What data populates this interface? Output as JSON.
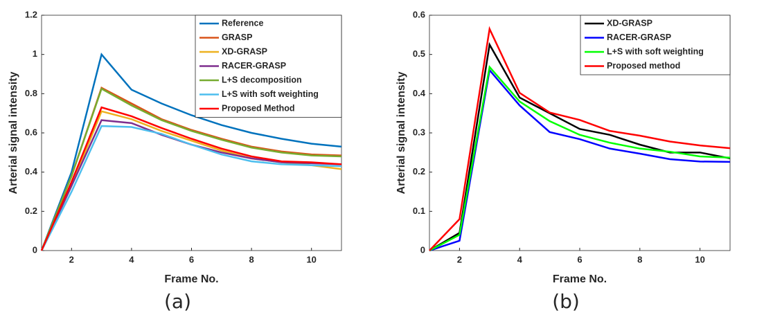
{
  "chart_data": [
    {
      "type": "line",
      "caption": "(a)",
      "xlabel": "Frame No.",
      "ylabel": "Arterial signal intensity",
      "x": [
        1,
        2,
        3,
        4,
        5,
        6,
        7,
        8,
        9,
        10,
        11
      ],
      "xlim": [
        1,
        11
      ],
      "xticks": [
        2,
        4,
        6,
        8,
        10
      ],
      "ylim": [
        0,
        1.2
      ],
      "yticks": [
        0,
        0.2,
        0.4,
        0.6,
        0.8,
        1,
        1.2
      ],
      "legend": "top-right",
      "series": [
        {
          "name": "Reference",
          "color": "#0072BD",
          "values": [
            0,
            0.4,
            1.0,
            0.82,
            0.75,
            0.69,
            0.64,
            0.6,
            0.57,
            0.545,
            0.53
          ]
        },
        {
          "name": "GRASP",
          "color": "#D95319",
          "values": [
            0,
            0.38,
            0.83,
            0.75,
            0.67,
            0.615,
            0.57,
            0.53,
            0.505,
            0.49,
            0.485
          ]
        },
        {
          "name": "XD-GRASP",
          "color": "#EDB120",
          "values": [
            0,
            0.33,
            0.71,
            0.67,
            0.61,
            0.56,
            0.51,
            0.47,
            0.45,
            0.435,
            0.415
          ]
        },
        {
          "name": "RACER-GRASP",
          "color": "#7E2F8E",
          "values": [
            0,
            0.33,
            0.665,
            0.65,
            0.59,
            0.54,
            0.5,
            0.47,
            0.45,
            0.445,
            0.44
          ]
        },
        {
          "name": "L+S decomposition",
          "color": "#77AC30",
          "values": [
            0,
            0.38,
            0.825,
            0.74,
            0.665,
            0.61,
            0.565,
            0.525,
            0.5,
            0.485,
            0.48
          ]
        },
        {
          "name": "L+S with soft weighting",
          "color": "#4DBEEE",
          "values": [
            0,
            0.3,
            0.635,
            0.63,
            0.595,
            0.54,
            0.49,
            0.455,
            0.44,
            0.435,
            0.43
          ]
        },
        {
          "name": "Proposed Method",
          "color": "#FF0000",
          "values": [
            0,
            0.35,
            0.73,
            0.685,
            0.625,
            0.57,
            0.52,
            0.48,
            0.455,
            0.45,
            0.44
          ]
        }
      ]
    },
    {
      "type": "line",
      "caption": "(b)",
      "xlabel": "Frame No.",
      "ylabel": "Arterial signal intensity",
      "x": [
        1,
        2,
        3,
        4,
        5,
        6,
        7,
        8,
        9,
        10,
        11
      ],
      "xlim": [
        1,
        11
      ],
      "xticks": [
        2,
        4,
        6,
        8,
        10
      ],
      "ylim": [
        0,
        0.6
      ],
      "yticks": [
        0,
        0.1,
        0.2,
        0.3,
        0.4,
        0.5,
        0.6
      ],
      "legend": "top-right",
      "series": [
        {
          "name": "XD-GRASP",
          "color": "#000000",
          "values": [
            0,
            0.045,
            0.525,
            0.39,
            0.35,
            0.31,
            0.295,
            0.27,
            0.25,
            0.25,
            0.235
          ]
        },
        {
          "name": "RACER-GRASP",
          "color": "#0000FF",
          "values": [
            0,
            0.025,
            0.46,
            0.37,
            0.302,
            0.284,
            0.26,
            0.247,
            0.233,
            0.227,
            0.226
          ]
        },
        {
          "name": "L+S with soft weighting",
          "color": "#00FF00",
          "values": [
            0,
            0.04,
            0.468,
            0.38,
            0.33,
            0.295,
            0.275,
            0.26,
            0.252,
            0.24,
            0.237
          ]
        },
        {
          "name": "Proposed method",
          "color": "#FF0000",
          "values": [
            0,
            0.08,
            0.565,
            0.402,
            0.352,
            0.333,
            0.305,
            0.293,
            0.278,
            0.268,
            0.261
          ]
        }
      ]
    }
  ]
}
